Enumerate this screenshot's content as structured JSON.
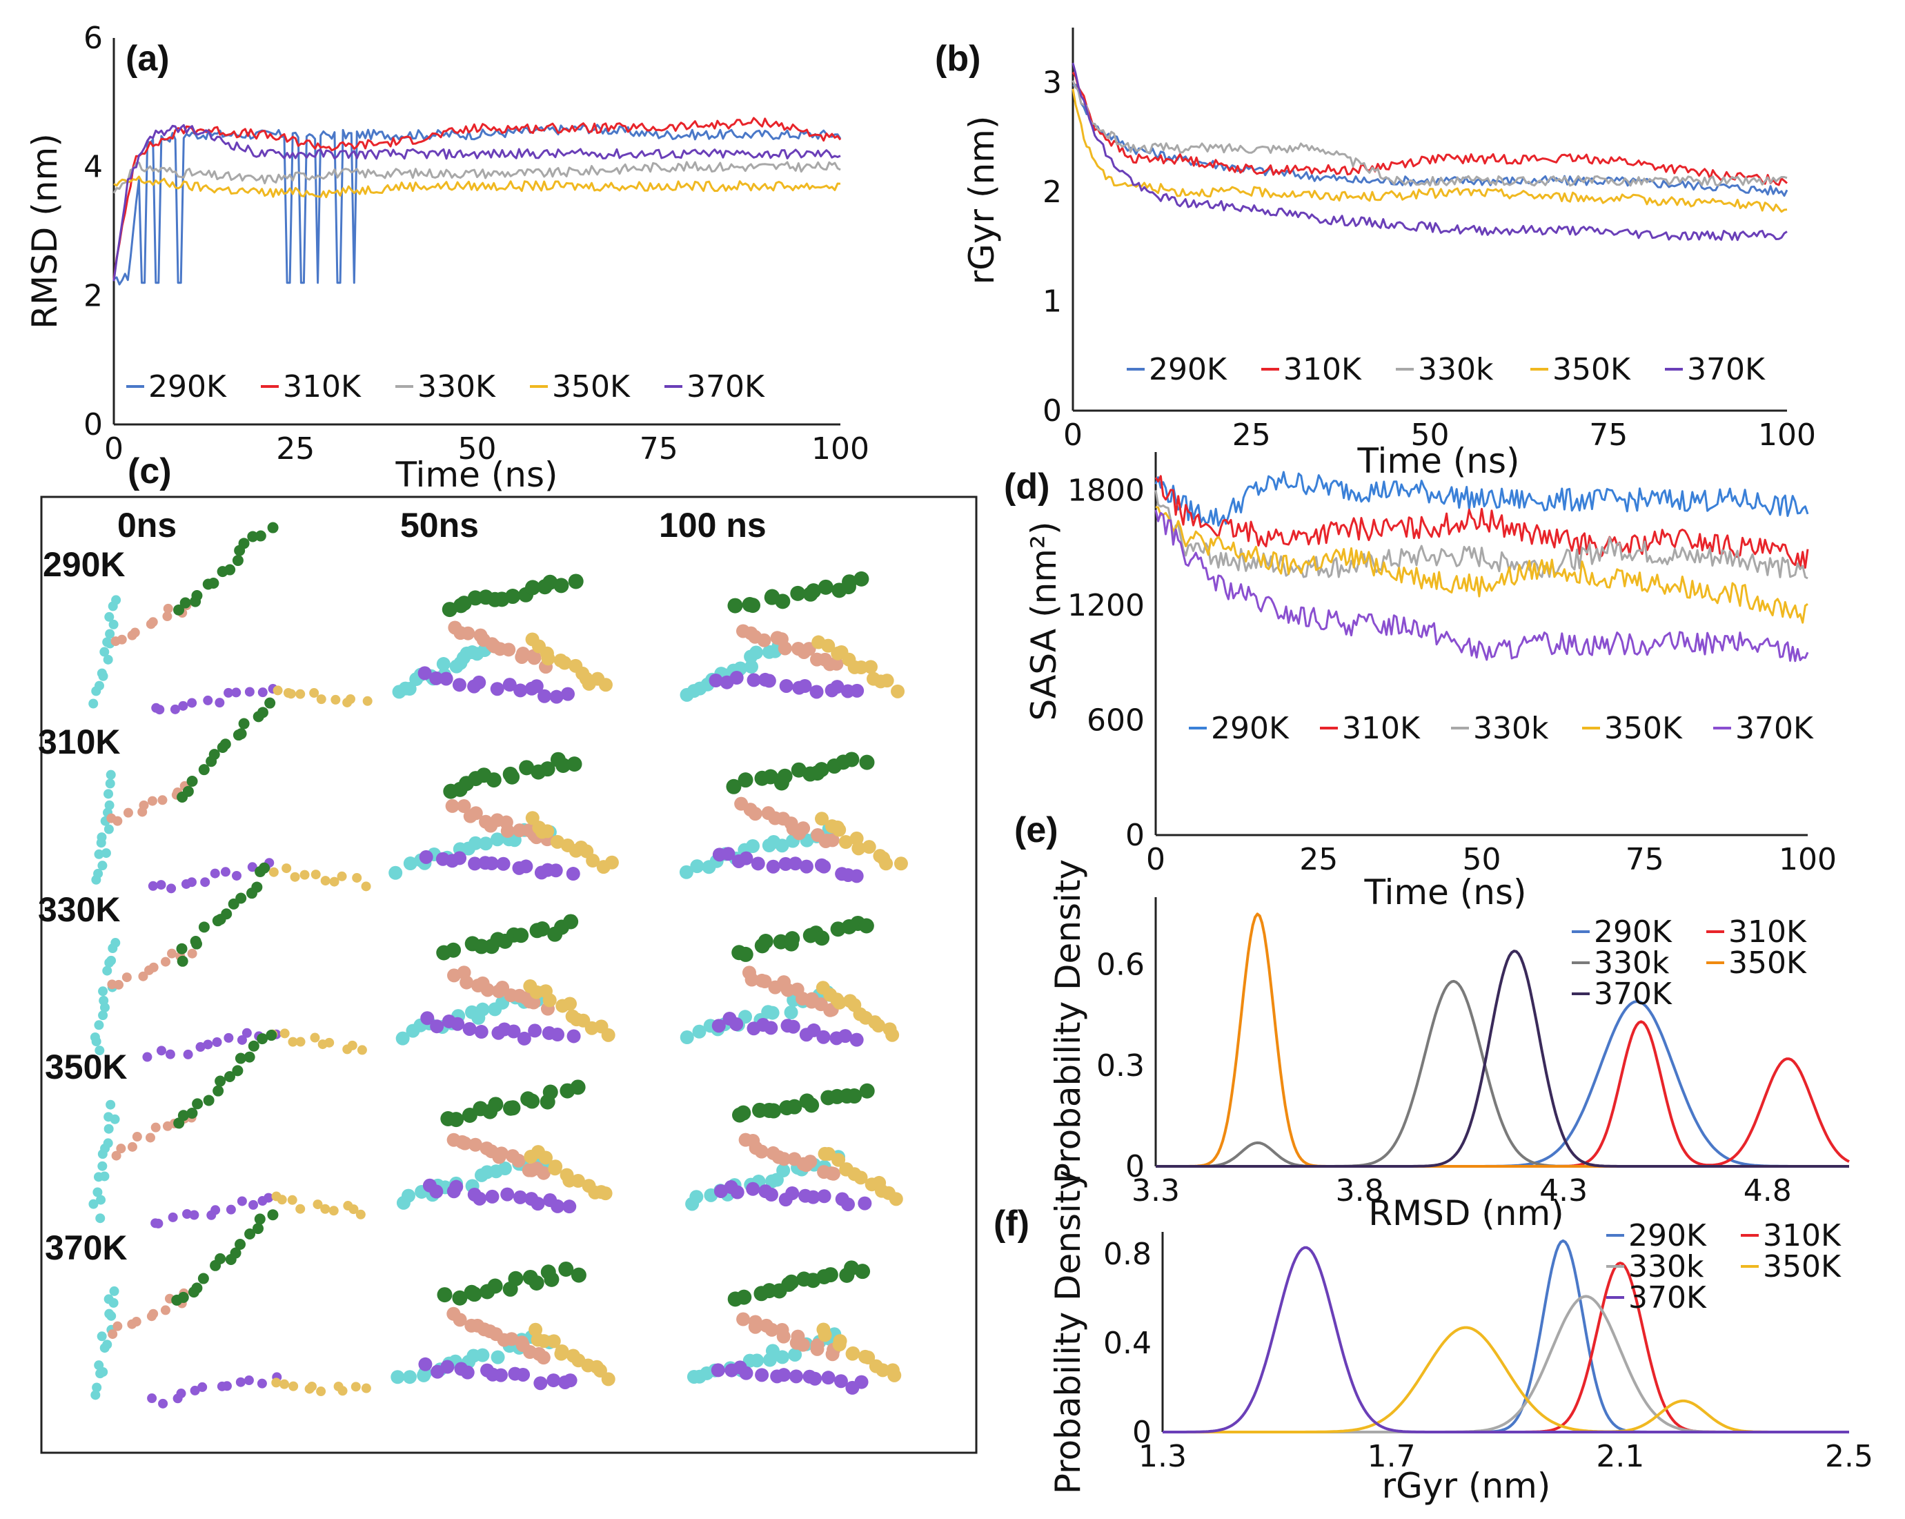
{
  "figure": {
    "panel_c_label": "(c)"
  },
  "snapshots": {
    "times": [
      "0ns",
      "50ns",
      "100 ns"
    ],
    "temps": [
      "290K",
      "310K",
      "330K",
      "350K",
      "370K"
    ],
    "chain_colors": {
      "cyan": "#6fd6d6",
      "salmon": "#e0a08a",
      "green": "#2e7d2e",
      "purple": "#8f5ad6",
      "yellow": "#e6c060"
    }
  },
  "chart_data": [
    {
      "id": "a",
      "type": "line",
      "panel_label": "(a)",
      "xlabel": "Time (ns)",
      "ylabel": "RMSD (nm)",
      "xlim": [
        0,
        100
      ],
      "ylim": [
        0,
        6
      ],
      "xticks": [
        "0",
        "25",
        "50",
        "75",
        "100"
      ],
      "yticks": [
        "0",
        "2",
        "4",
        "6"
      ],
      "series": [
        {
          "name": "290K",
          "color": "#4a78c8",
          "points": [
            [
              0,
              2.2
            ],
            [
              2,
              2.3
            ],
            [
              4,
              4.4
            ],
            [
              10,
              4.5
            ],
            [
              25,
              4.5
            ],
            [
              40,
              4.5
            ],
            [
              50,
              4.5
            ],
            [
              65,
              4.6
            ],
            [
              75,
              4.5
            ],
            [
              90,
              4.5
            ],
            [
              100,
              4.5
            ]
          ],
          "spikes": [
            [
              4,
              2.2
            ],
            [
              6,
              2.2
            ],
            [
              9,
              2.2
            ],
            [
              24,
              2.2
            ],
            [
              26,
              2.2
            ],
            [
              28,
              2.2
            ],
            [
              31,
              2.2
            ],
            [
              33,
              2.2
            ]
          ]
        },
        {
          "name": "310K",
          "color": "#e8242a",
          "points": [
            [
              0,
              2.3
            ],
            [
              3,
              4.2
            ],
            [
              10,
              4.6
            ],
            [
              20,
              4.5
            ],
            [
              30,
              4.3
            ],
            [
              40,
              4.4
            ],
            [
              50,
              4.6
            ],
            [
              60,
              4.6
            ],
            [
              75,
              4.6
            ],
            [
              90,
              4.7
            ],
            [
              100,
              4.4
            ]
          ]
        },
        {
          "name": "330K",
          "color": "#a8a8a8",
          "points": [
            [
              0,
              3.6
            ],
            [
              3,
              4.0
            ],
            [
              10,
              3.9
            ],
            [
              20,
              3.8
            ],
            [
              30,
              3.9
            ],
            [
              50,
              3.9
            ],
            [
              60,
              3.9
            ],
            [
              75,
              4.0
            ],
            [
              90,
              4.0
            ],
            [
              100,
              4.0
            ]
          ]
        },
        {
          "name": "350K",
          "color": "#f0b820",
          "points": [
            [
              0,
              3.7
            ],
            [
              3,
              3.8
            ],
            [
              10,
              3.7
            ],
            [
              20,
              3.6
            ],
            [
              30,
              3.6
            ],
            [
              40,
              3.7
            ],
            [
              50,
              3.7
            ],
            [
              60,
              3.7
            ],
            [
              75,
              3.7
            ],
            [
              90,
              3.7
            ],
            [
              100,
              3.7
            ]
          ]
        },
        {
          "name": "370K",
          "color": "#6a3fb8",
          "points": [
            [
              0,
              2.3
            ],
            [
              2,
              3.8
            ],
            [
              5,
              4.5
            ],
            [
              10,
              4.6
            ],
            [
              15,
              4.4
            ],
            [
              20,
              4.2
            ],
            [
              30,
              4.2
            ],
            [
              40,
              4.2
            ],
            [
              50,
              4.2
            ],
            [
              70,
              4.2
            ],
            [
              100,
              4.2
            ]
          ]
        }
      ]
    },
    {
      "id": "b",
      "type": "line",
      "panel_label": "(b)",
      "xlabel": "Time (ns)",
      "ylabel": "rGyr (nm)",
      "xlim": [
        0,
        100
      ],
      "ylim": [
        0,
        3.5
      ],
      "xticks": [
        "0",
        "25",
        "50",
        "75",
        "100"
      ],
      "yticks": [
        "0",
        "1",
        "2",
        "3"
      ],
      "series": [
        {
          "name": "290K",
          "color": "#4a78c8",
          "points": [
            [
              0,
              3.0
            ],
            [
              3,
              2.6
            ],
            [
              8,
              2.4
            ],
            [
              15,
              2.3
            ],
            [
              25,
              2.2
            ],
            [
              40,
              2.1
            ],
            [
              50,
              2.1
            ],
            [
              60,
              2.1
            ],
            [
              75,
              2.1
            ],
            [
              90,
              2.05
            ],
            [
              100,
              2.0
            ]
          ]
        },
        {
          "name": "310K",
          "color": "#e8242a",
          "points": [
            [
              0,
              3.1
            ],
            [
              3,
              2.6
            ],
            [
              8,
              2.3
            ],
            [
              15,
              2.3
            ],
            [
              25,
              2.2
            ],
            [
              40,
              2.2
            ],
            [
              50,
              2.3
            ],
            [
              60,
              2.3
            ],
            [
              75,
              2.3
            ],
            [
              90,
              2.15
            ],
            [
              100,
              2.1
            ]
          ]
        },
        {
          "name": "330k",
          "color": "#a8a8a8",
          "points": [
            [
              0,
              3.0
            ],
            [
              3,
              2.6
            ],
            [
              8,
              2.4
            ],
            [
              15,
              2.4
            ],
            [
              25,
              2.4
            ],
            [
              35,
              2.4
            ],
            [
              45,
              2.1
            ],
            [
              60,
              2.1
            ],
            [
              75,
              2.1
            ],
            [
              90,
              2.1
            ],
            [
              100,
              2.1
            ]
          ]
        },
        {
          "name": "350K",
          "color": "#f0b820",
          "points": [
            [
              0,
              2.9
            ],
            [
              2,
              2.4
            ],
            [
              5,
              2.1
            ],
            [
              15,
              2.0
            ],
            [
              25,
              2.0
            ],
            [
              40,
              1.95
            ],
            [
              55,
              2.0
            ],
            [
              70,
              1.95
            ],
            [
              90,
              1.9
            ],
            [
              100,
              1.85
            ]
          ]
        },
        {
          "name": "370K",
          "color": "#6a3fb8",
          "points": [
            [
              0,
              3.2
            ],
            [
              2,
              2.7
            ],
            [
              5,
              2.3
            ],
            [
              10,
              2.0
            ],
            [
              15,
              1.9
            ],
            [
              25,
              1.85
            ],
            [
              35,
              1.75
            ],
            [
              45,
              1.7
            ],
            [
              55,
              1.65
            ],
            [
              70,
              1.65
            ],
            [
              85,
              1.6
            ],
            [
              100,
              1.6
            ]
          ]
        }
      ]
    },
    {
      "id": "d",
      "type": "line",
      "panel_label": "(d)",
      "xlabel": "Time (ns)",
      "ylabel": "SASA (nm²)",
      "xlim": [
        0,
        100
      ],
      "ylim": [
        0,
        2000
      ],
      "xticks": [
        "0",
        "25",
        "50",
        "75",
        "100"
      ],
      "yticks": [
        "0",
        "600",
        "1200",
        "1800"
      ],
      "series": [
        {
          "name": "290K",
          "color": "#3a80d8",
          "points": [
            [
              0,
              1850
            ],
            [
              5,
              1700
            ],
            [
              10,
              1650
            ],
            [
              15,
              1800
            ],
            [
              20,
              1850
            ],
            [
              30,
              1800
            ],
            [
              40,
              1800
            ],
            [
              50,
              1750
            ],
            [
              60,
              1750
            ],
            [
              70,
              1750
            ],
            [
              80,
              1750
            ],
            [
              90,
              1750
            ],
            [
              100,
              1700
            ]
          ]
        },
        {
          "name": "310K",
          "color": "#e8242a",
          "points": [
            [
              0,
              1850
            ],
            [
              5,
              1650
            ],
            [
              10,
              1600
            ],
            [
              20,
              1550
            ],
            [
              30,
              1600
            ],
            [
              40,
              1600
            ],
            [
              50,
              1650
            ],
            [
              60,
              1550
            ],
            [
              70,
              1500
            ],
            [
              80,
              1550
            ],
            [
              90,
              1500
            ],
            [
              100,
              1450
            ]
          ]
        },
        {
          "name": "330k",
          "color": "#a8a8a8",
          "points": [
            [
              0,
              1750
            ],
            [
              5,
              1500
            ],
            [
              10,
              1450
            ],
            [
              20,
              1400
            ],
            [
              30,
              1400
            ],
            [
              40,
              1450
            ],
            [
              50,
              1450
            ],
            [
              60,
              1400
            ],
            [
              70,
              1500
            ],
            [
              80,
              1450
            ],
            [
              90,
              1450
            ],
            [
              100,
              1350
            ]
          ]
        },
        {
          "name": "350K",
          "color": "#f0b820",
          "points": [
            [
              0,
              1750
            ],
            [
              5,
              1550
            ],
            [
              10,
              1500
            ],
            [
              20,
              1400
            ],
            [
              30,
              1450
            ],
            [
              40,
              1350
            ],
            [
              50,
              1300
            ],
            [
              60,
              1400
            ],
            [
              70,
              1350
            ],
            [
              80,
              1300
            ],
            [
              90,
              1250
            ],
            [
              100,
              1150
            ]
          ]
        },
        {
          "name": "370K",
          "color": "#8a4fd0",
          "points": [
            [
              0,
              1700
            ],
            [
              5,
              1450
            ],
            [
              10,
              1300
            ],
            [
              20,
              1150
            ],
            [
              30,
              1100
            ],
            [
              40,
              1100
            ],
            [
              50,
              950
            ],
            [
              60,
              1000
            ],
            [
              70,
              1000
            ],
            [
              80,
              1000
            ],
            [
              90,
              1000
            ],
            [
              100,
              950
            ]
          ]
        }
      ]
    },
    {
      "id": "e",
      "type": "line",
      "panel_label": "(e)",
      "xlabel": "RMSD (nm)",
      "ylabel": "Probability Density",
      "xlim": [
        3.3,
        5.0
      ],
      "ylim": [
        0,
        0.8
      ],
      "xticks": [
        "3.3",
        "3.8",
        "4.3",
        "4.8"
      ],
      "yticks": [
        "0",
        "0.3",
        "0.6"
      ],
      "series": [
        {
          "name": "290K",
          "color": "#4a78c8",
          "peaks": [
            [
              4.48,
              0.49,
              0.09
            ]
          ]
        },
        {
          "name": "310K",
          "color": "#e8242a",
          "peaks": [
            [
              4.49,
              0.43,
              0.05
            ],
            [
              4.85,
              0.32,
              0.06
            ]
          ]
        },
        {
          "name": "330k",
          "color": "#7a7a7a",
          "peaks": [
            [
              3.55,
              0.07,
              0.04
            ],
            [
              4.03,
              0.55,
              0.07
            ]
          ]
        },
        {
          "name": "350K",
          "color": "#f08a10",
          "peaks": [
            [
              3.55,
              0.75,
              0.04
            ]
          ]
        },
        {
          "name": "370K",
          "color": "#3a2a5a",
          "peaks": [
            [
              4.18,
              0.64,
              0.06
            ]
          ]
        }
      ]
    },
    {
      "id": "f",
      "type": "line",
      "panel_label": "(f)",
      "xlabel": "rGyr (nm)",
      "ylabel": "Probability Density",
      "xlim": [
        1.3,
        2.5
      ],
      "ylim": [
        0,
        0.9
      ],
      "xticks": [
        "1.3",
        "1.7",
        "2.1",
        "2.5"
      ],
      "yticks": [
        "0",
        "0.4",
        "0.8"
      ],
      "series": [
        {
          "name": "290K",
          "color": "#4a78c8",
          "peaks": [
            [
              2.0,
              0.86,
              0.035
            ]
          ]
        },
        {
          "name": "310K",
          "color": "#e8242a",
          "peaks": [
            [
              2.1,
              0.76,
              0.04
            ]
          ]
        },
        {
          "name": "330k",
          "color": "#a8a8a8",
          "peaks": [
            [
              2.04,
              0.61,
              0.06
            ]
          ]
        },
        {
          "name": "350K",
          "color": "#f0b820",
          "peaks": [
            [
              1.83,
              0.47,
              0.07
            ],
            [
              2.21,
              0.14,
              0.04
            ]
          ]
        },
        {
          "name": "370K",
          "color": "#6a3fb8",
          "peaks": [
            [
              1.55,
              0.83,
              0.05
            ]
          ]
        }
      ]
    }
  ]
}
